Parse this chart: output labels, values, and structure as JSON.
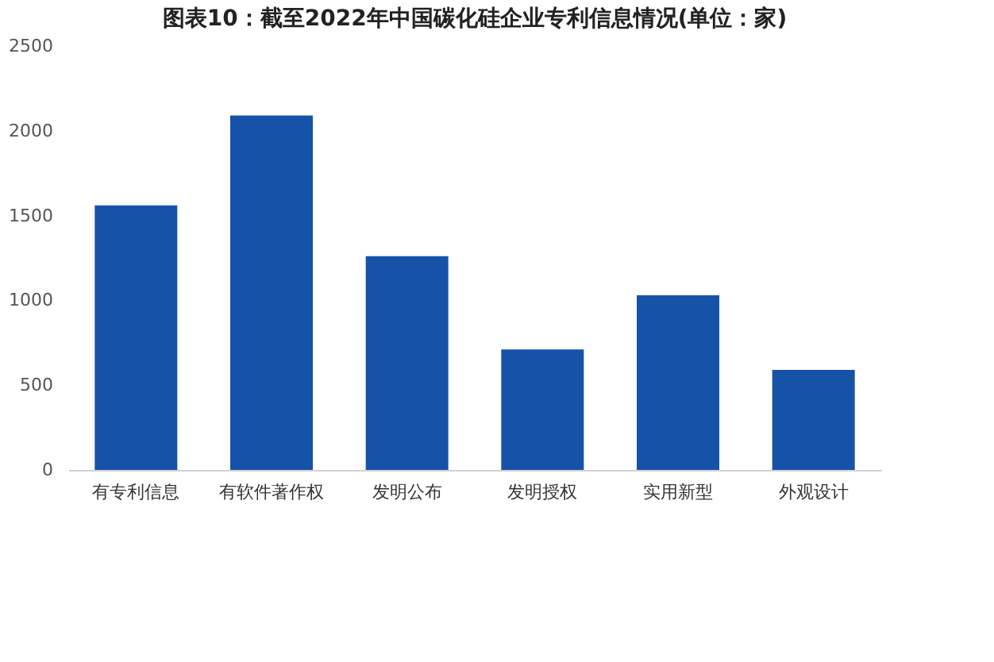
{
  "chart_data": {
    "type": "bar",
    "title": "图表10：截至2022年中国碳化硅企业专利信息情况(单位：家)",
    "categories": [
      "有专利信息",
      "有软件著作权",
      "发明公布",
      "发明授权",
      "实用新型",
      "外观设计"
    ],
    "values": [
      1560,
      2090,
      1260,
      710,
      1030,
      590
    ],
    "color": "#1652a8",
    "ylim": [
      0,
      2500
    ],
    "yticks": [
      0,
      500,
      1000,
      1500,
      2000,
      2500
    ],
    "grid": false
  }
}
